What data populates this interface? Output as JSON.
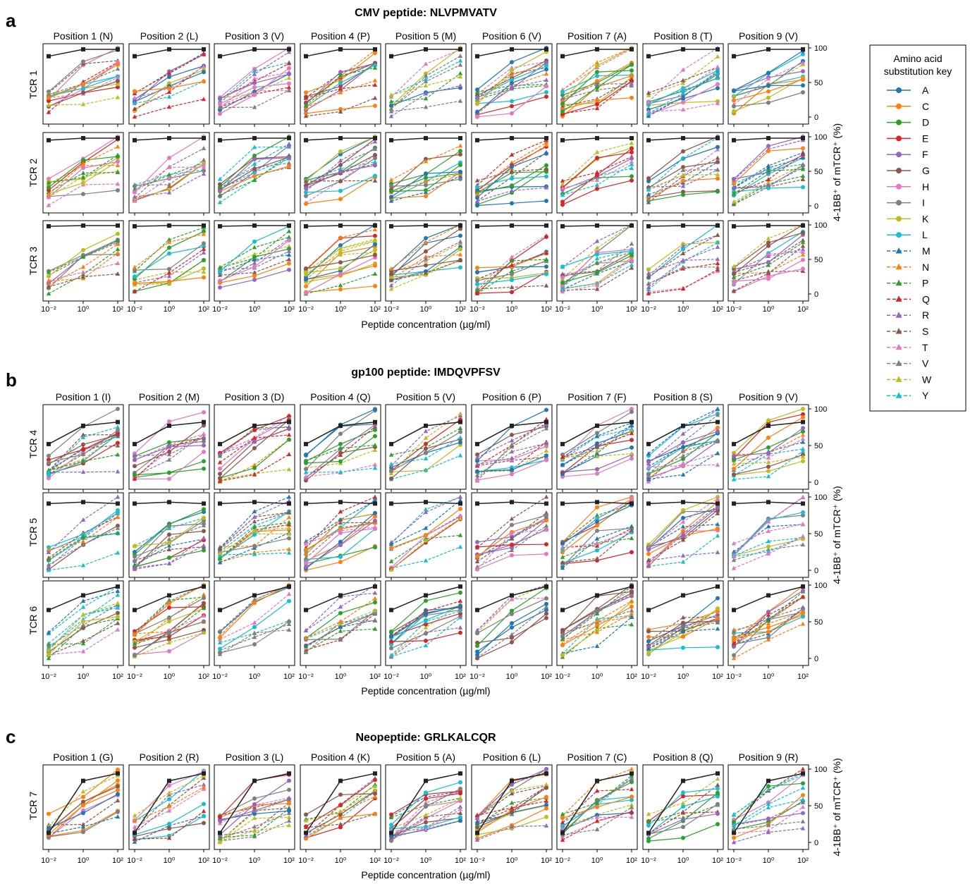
{
  "chart_data": {
    "type": "line",
    "x_ticks": [
      "10⁻²",
      "10⁰",
      "10²"
    ],
    "y_ticks": [
      "0",
      "50",
      "100"
    ],
    "xlabel": "Peptide concentration (µg/ml)",
    "ylabel": "4-1BB⁺ of mTCR⁺ (%)",
    "panels": [
      {
        "letter": "a",
        "title": "CMV peptide: NLVPMVATV",
        "positions": [
          "Position 1 (N)",
          "Position 2 (L)",
          "Position 3 (V)",
          "Position 4 (P)",
          "Position 5 (M)",
          "Position 6 (V)",
          "Position 7 (A)",
          "Position 8 (T)",
          "Position 9 (V)"
        ],
        "rows": [
          "TCR 1",
          "TCR 2",
          "TCR 3"
        ],
        "reference_line": [
          [
            88,
            98,
            98
          ],
          [
            95,
            98,
            98
          ],
          [
            98,
            99,
            99
          ]
        ]
      },
      {
        "letter": "b",
        "title": "gp100 peptide: IMDQVPFSV",
        "positions": [
          "Position 1 (I)",
          "Position 2 (M)",
          "Position 3 (D)",
          "Position 4 (Q)",
          "Position 5 (V)",
          "Position 6 (P)",
          "Position 7 (F)",
          "Position 8 (S)",
          "Position 9 (V)"
        ],
        "rows": [
          "TCR 4",
          "TCR 5",
          "TCR 6"
        ],
        "reference_line": [
          [
            52,
            77,
            82
          ],
          [
            91,
            93,
            91
          ],
          [
            66,
            86,
            98
          ]
        ]
      },
      {
        "letter": "c",
        "title": "Neopeptide: GRLKALCQR",
        "positions": [
          "Position 1 (G)",
          "Position 2 (R)",
          "Position 3 (L)",
          "Position 4 (K)",
          "Position 5 (A)",
          "Position 6 (L)",
          "Position 7 (C)",
          "Position 8 (Q)",
          "Position 9 (R)"
        ],
        "rows": [
          "TCR 7"
        ],
        "reference_line": [
          [
            13,
            84,
            94
          ]
        ]
      }
    ],
    "legend": {
      "title_line1": "Amino acid",
      "title_line2": "substitution key",
      "entries": [
        {
          "label": "A",
          "color": "#1f77b4",
          "style": "solid",
          "marker": "circle"
        },
        {
          "label": "C",
          "color": "#ff7f0e",
          "style": "solid",
          "marker": "circle"
        },
        {
          "label": "D",
          "color": "#2ca02c",
          "style": "solid",
          "marker": "circle"
        },
        {
          "label": "E",
          "color": "#d62728",
          "style": "solid",
          "marker": "circle"
        },
        {
          "label": "F",
          "color": "#9467bd",
          "style": "solid",
          "marker": "circle"
        },
        {
          "label": "G",
          "color": "#8c564b",
          "style": "solid",
          "marker": "circle"
        },
        {
          "label": "H",
          "color": "#e377c2",
          "style": "solid",
          "marker": "circle"
        },
        {
          "label": "I",
          "color": "#7f7f7f",
          "style": "solid",
          "marker": "circle"
        },
        {
          "label": "K",
          "color": "#bcbd22",
          "style": "solid",
          "marker": "circle"
        },
        {
          "label": "L",
          "color": "#17becf",
          "style": "solid",
          "marker": "circle"
        },
        {
          "label": "M",
          "color": "#1f77b4",
          "style": "dashed",
          "marker": "triangle"
        },
        {
          "label": "N",
          "color": "#ff7f0e",
          "style": "dashed",
          "marker": "triangle"
        },
        {
          "label": "P",
          "color": "#2ca02c",
          "style": "dashed",
          "marker": "triangle"
        },
        {
          "label": "Q",
          "color": "#d62728",
          "style": "dashed",
          "marker": "triangle"
        },
        {
          "label": "R",
          "color": "#9467bd",
          "style": "dashed",
          "marker": "triangle"
        },
        {
          "label": "S",
          "color": "#8c564b",
          "style": "dashed",
          "marker": "triangle"
        },
        {
          "label": "T",
          "color": "#e377c2",
          "style": "dashed",
          "marker": "triangle"
        },
        {
          "label": "V",
          "color": "#7f7f7f",
          "style": "dashed",
          "marker": "triangle"
        },
        {
          "label": "W",
          "color": "#bcbd22",
          "style": "dashed",
          "marker": "triangle"
        },
        {
          "label": "Y",
          "color": "#17becf",
          "style": "dashed",
          "marker": "triangle"
        }
      ]
    },
    "reference_color": "#222222"
  }
}
